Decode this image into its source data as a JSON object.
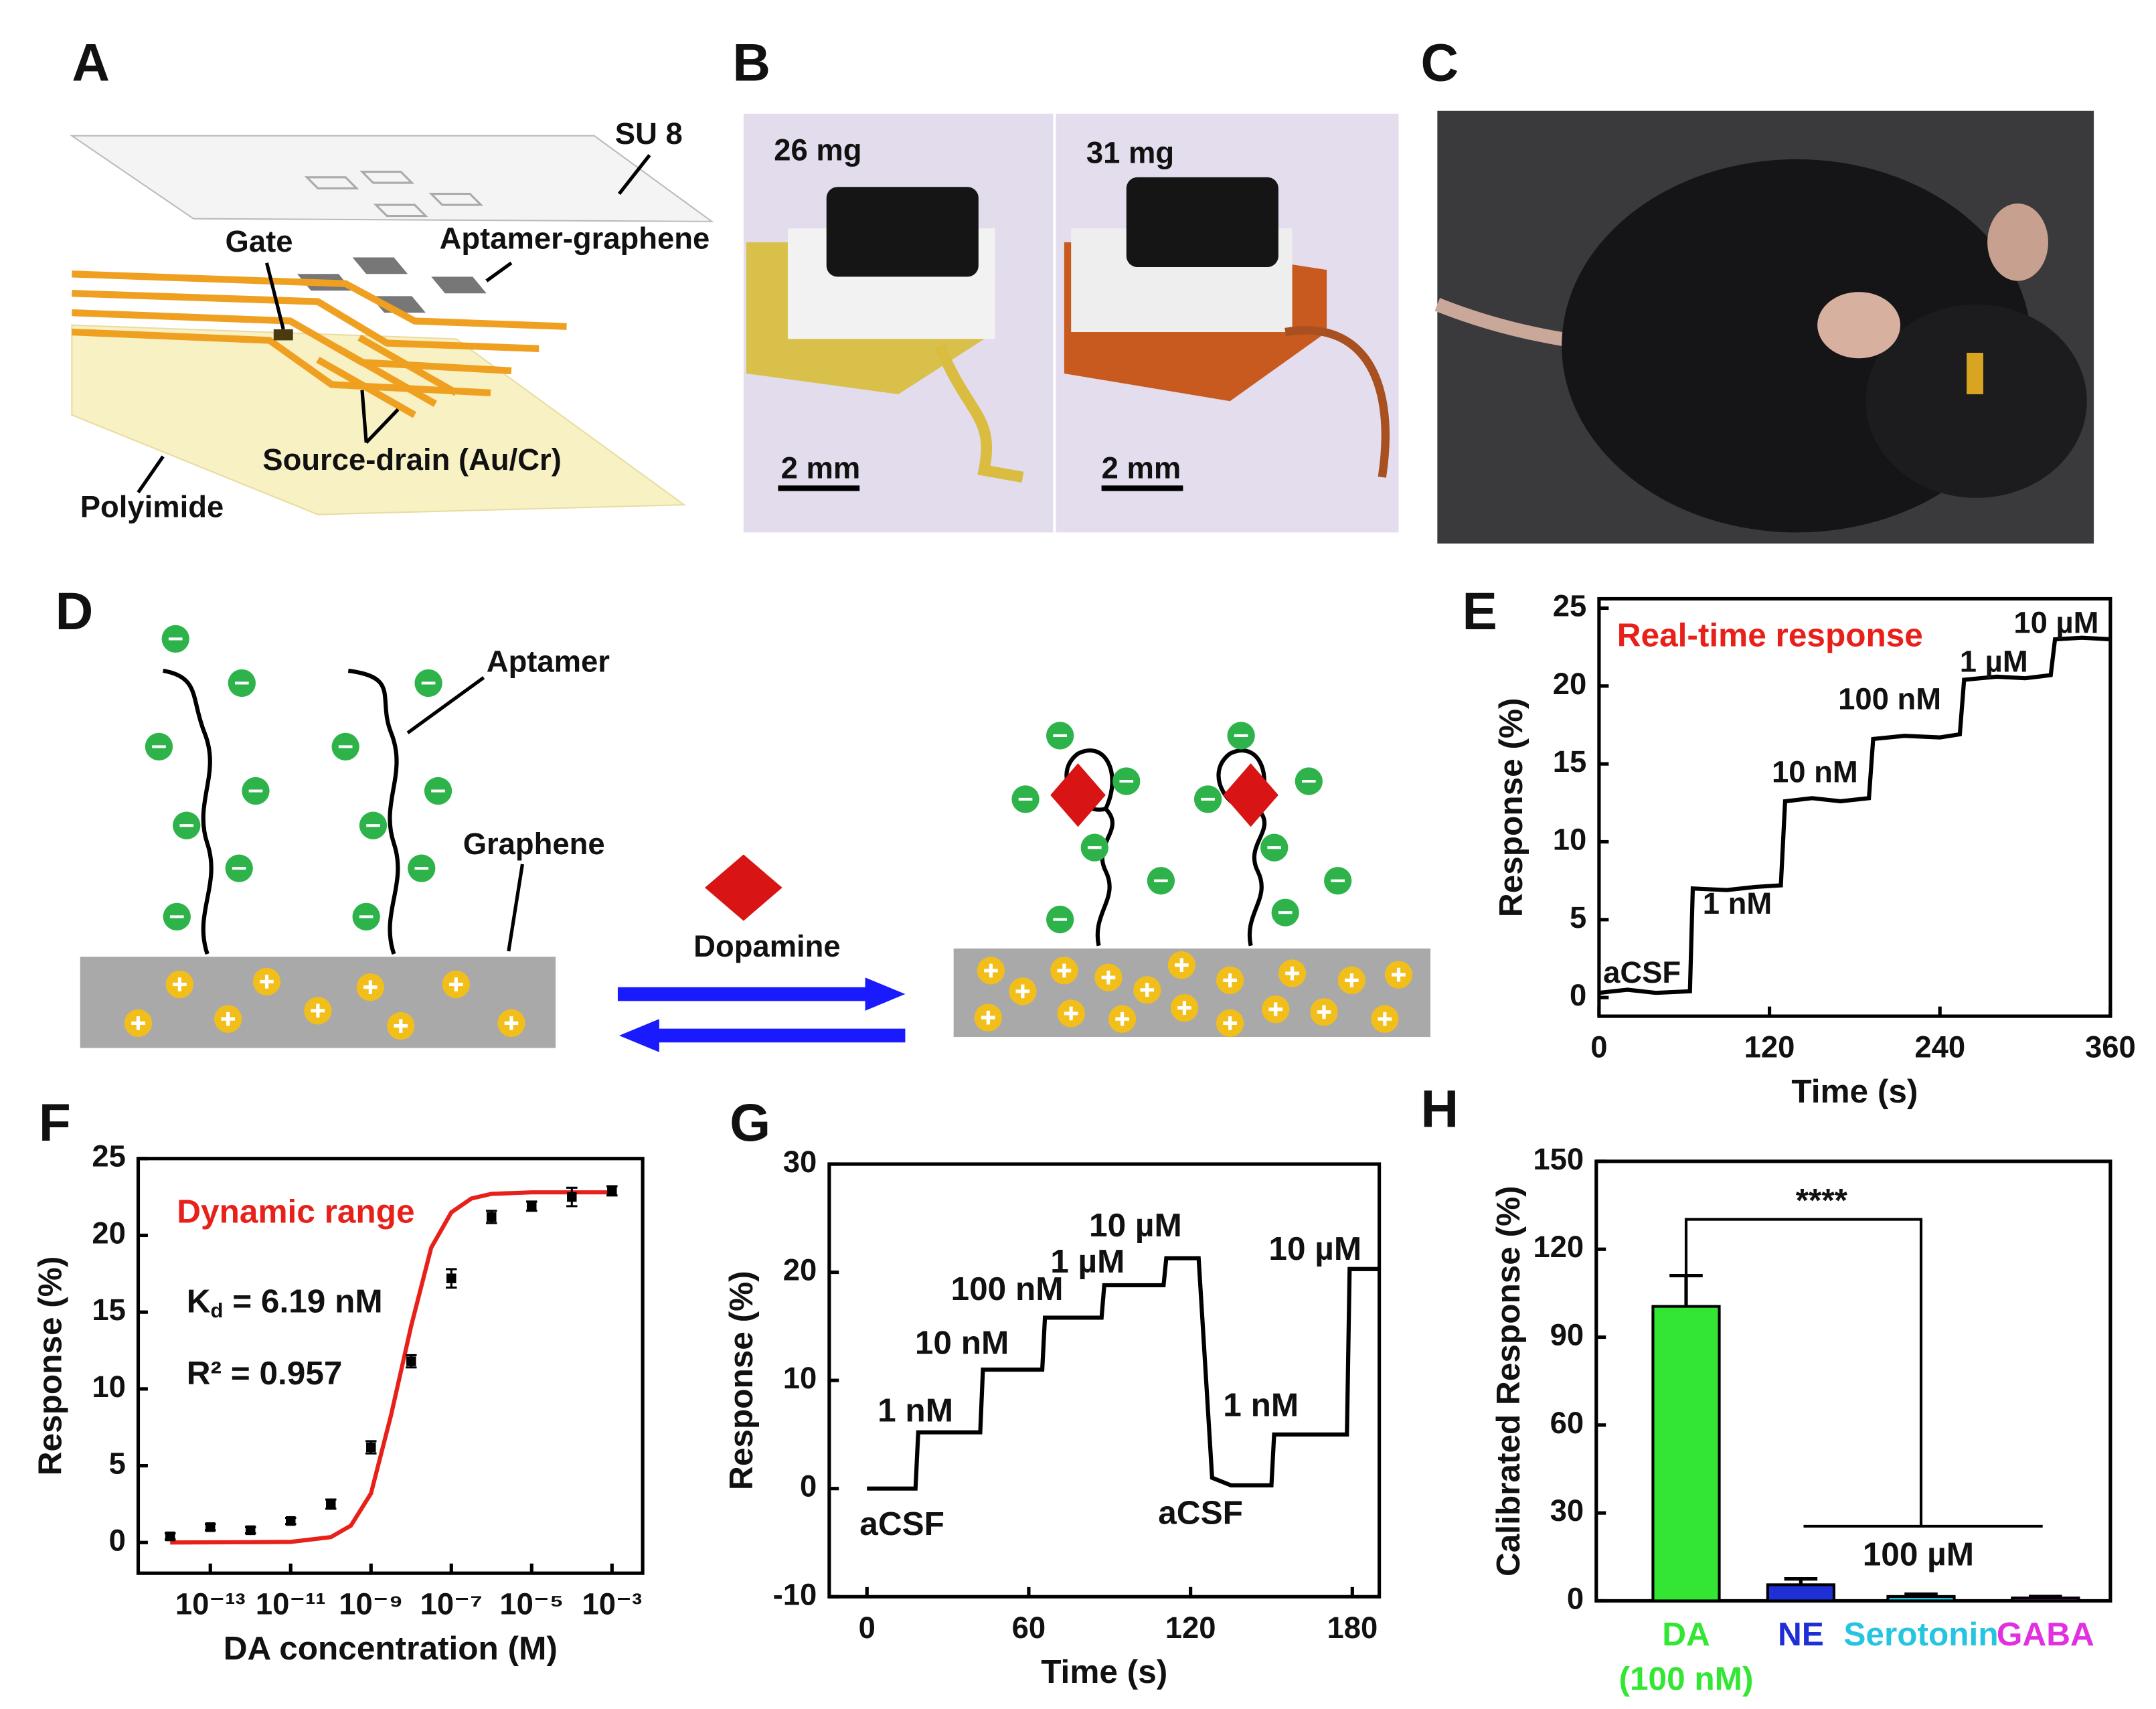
{
  "panel_labels": [
    "A",
    "B",
    "C",
    "D",
    "E",
    "F",
    "G",
    "H"
  ],
  "panel_a": {
    "labels": [
      "SU 8",
      "Aptamer-graphene",
      "Gate",
      "Source-drain (Au/Cr)",
      "Polyimide"
    ]
  },
  "panel_b": {
    "labels": [
      "26 mg",
      "31 mg"
    ],
    "scale_bars": [
      "2 mm",
      "2 mm"
    ]
  },
  "panel_d": {
    "labels": [
      "Aptamer",
      "Graphene",
      "Dopamine"
    ]
  },
  "chart_data": [
    {
      "type": "line",
      "xlabel": "Time (s)",
      "ylabel": "Response (%)",
      "x": [
        0,
        20,
        40,
        64,
        66,
        90,
        110,
        128,
        131,
        150,
        170,
        190,
        193,
        215,
        240,
        254,
        257,
        280,
        300,
        318,
        321,
        340,
        360
      ],
      "series": [
        {
          "color": "#000000",
          "values": [
            0.3,
            0.5,
            0.3,
            0.4,
            7.0,
            6.9,
            7.1,
            7.2,
            12.6,
            12.8,
            12.6,
            12.8,
            16.6,
            16.8,
            16.7,
            16.9,
            20.4,
            20.6,
            20.5,
            20.7,
            23.0,
            23.1,
            23.0
          ]
        }
      ],
      "xlim": [
        0,
        360
      ],
      "xticks": [
        0,
        120,
        240,
        360
      ],
      "ylim": [
        -1.2,
        25.6
      ],
      "yticks": [
        0,
        5,
        10,
        15,
        20,
        25
      ],
      "annotations": [
        "Real-time response",
        "aCSF",
        "1 nM",
        "10 nM",
        "100 nM",
        "1 µM",
        "10 µM"
      ],
      "annotation_color": "#e8201a"
    },
    {
      "type": "scatter",
      "xlabel": "DA concentration (M)",
      "ylabel": "Response (%)",
      "log_x": true,
      "xlim": [
        1.6e-15,
        0.0058
      ],
      "xticks": [
        {
          "value": 1e-13,
          "label": "10⁻¹³"
        },
        {
          "value": 1e-11,
          "label": "10⁻¹¹"
        },
        {
          "value": 1e-09,
          "label": "10⁻⁹"
        },
        {
          "value": 1e-07,
          "label": "10⁻⁷"
        },
        {
          "value": 1e-05,
          "label": "10⁻⁵"
        },
        {
          "value": 0.001,
          "label": "10⁻³"
        }
      ],
      "ylim": [
        -2,
        25
      ],
      "yticks": [
        0,
        5,
        10,
        15,
        20,
        25
      ],
      "series": [
        {
          "color": "#000000",
          "x": [
            1e-14,
            1e-13,
            1e-12,
            1e-11,
            1e-10,
            1e-09,
            1e-08,
            1e-07,
            1e-06,
            1e-05,
            0.0001,
            0.001
          ],
          "values": [
            0.4,
            1.0,
            0.8,
            1.4,
            2.5,
            6.2,
            11.8,
            17.2,
            21.2,
            21.9,
            22.5,
            22.9
          ],
          "errors": [
            0.2,
            0.2,
            0.2,
            0.2,
            0.3,
            0.4,
            0.4,
            0.6,
            0.4,
            0.3,
            0.6,
            0.3
          ]
        },
        {
          "color": "#e8201a",
          "x": [
            1e-14,
            1e-12,
            1e-11,
            1e-10,
            3.16e-10,
            1e-09,
            3.16e-09,
            1e-08,
            3.16e-08,
            1e-07,
            3.16e-07,
            1e-06,
            1e-05,
            0.001
          ],
          "values": [
            0,
            0.02,
            0.04,
            0.35,
            1.1,
            3.2,
            8.3,
            14.1,
            19.2,
            21.5,
            22.4,
            22.7,
            22.8,
            22.8
          ]
        }
      ],
      "annotations": [
        "Dynamic range"
      ],
      "annotation_color": "#e8201a",
      "kd": [
        "K",
        "d",
        " = 6.19 nM"
      ],
      "r2": "R² = 0.957"
    },
    {
      "type": "line",
      "xlabel": "Time (s)",
      "ylabel": "Response (%)",
      "x": [
        0,
        18,
        19,
        42,
        43,
        65,
        66,
        87,
        88,
        110,
        111,
        123,
        128,
        135,
        150,
        151,
        178,
        179,
        190
      ],
      "series": [
        {
          "color": "#000000",
          "values": [
            0,
            0,
            5.2,
            5.2,
            11,
            11,
            15.8,
            15.8,
            18.8,
            18.8,
            21.3,
            21.3,
            1,
            0.3,
            0.3,
            5,
            5,
            20.3,
            20.3
          ]
        }
      ],
      "xlim": [
        -14,
        190
      ],
      "xticks": [
        0,
        60,
        120,
        180
      ],
      "ylim": [
        -10,
        30
      ],
      "yticks": [
        -10,
        0,
        10,
        20,
        30
      ],
      "annotations": [
        "1 nM",
        "10 nM",
        "100 nM",
        "1 µM",
        "10 µM",
        "aCSF",
        "1 nM",
        "10 µM",
        "aCSF"
      ]
    },
    {
      "type": "bar",
      "ylabel": "Calibrated Response (%)",
      "categories": [
        "DA",
        "NE",
        "Serotonin",
        "GABA"
      ],
      "series": [
        {
          "values": [
            100.5,
            5.5,
            1.5,
            1
          ],
          "errors": [
            10.5,
            2,
            0.8,
            0.5
          ],
          "colors": [
            "#33e633",
            "#1f2fd6",
            "#25c4e0",
            "#e030e0"
          ]
        }
      ],
      "ylim": [
        0,
        150
      ],
      "yticks": [
        0,
        30,
        60,
        90,
        120,
        150
      ],
      "annotations": [
        "****",
        "100 µM",
        "(100 nM)"
      ]
    }
  ]
}
